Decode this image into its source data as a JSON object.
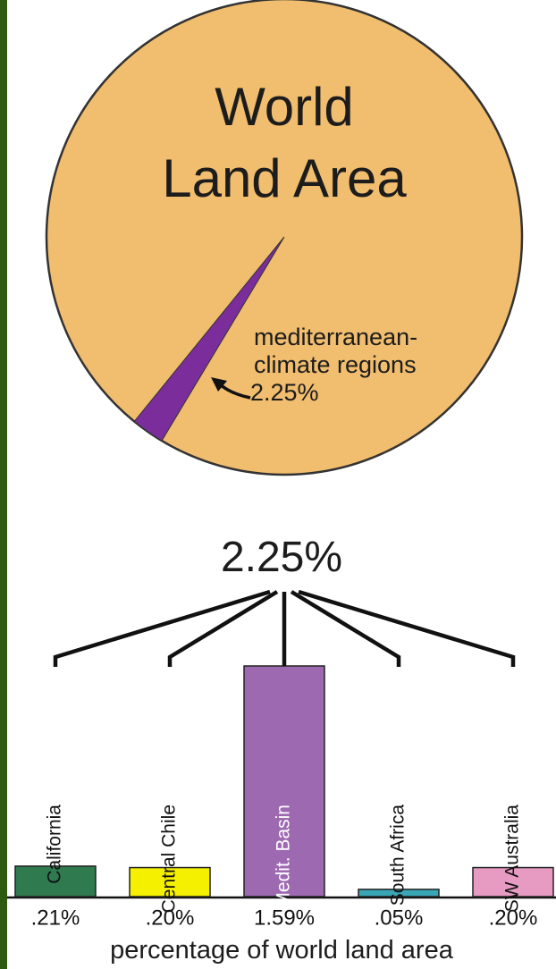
{
  "chart_data": [
    {
      "type": "pie",
      "title": "World Land Area",
      "categories": [
        "mediterranean-climate regions"
      ],
      "values": [
        2.25
      ],
      "value_labels": [
        "2.25%"
      ],
      "color": "#7b2d9c",
      "background_color": "#f1bd6e"
    },
    {
      "type": "bar",
      "annotation": "2.25%",
      "categories": [
        "California",
        "Central Chile",
        "Medit. Basin",
        "South Africa",
        "SW Australia"
      ],
      "values": [
        0.21,
        0.2,
        1.59,
        0.05,
        0.2
      ],
      "value_labels": [
        ".21%",
        ".20%",
        "1.59%",
        ".05%",
        ".20%"
      ],
      "colors": [
        "#2f7a4f",
        "#f5ef00",
        "#9d6ab2",
        "#3aa5b5",
        "#e89bc2"
      ],
      "x_label": "percentage of world land area"
    }
  ]
}
